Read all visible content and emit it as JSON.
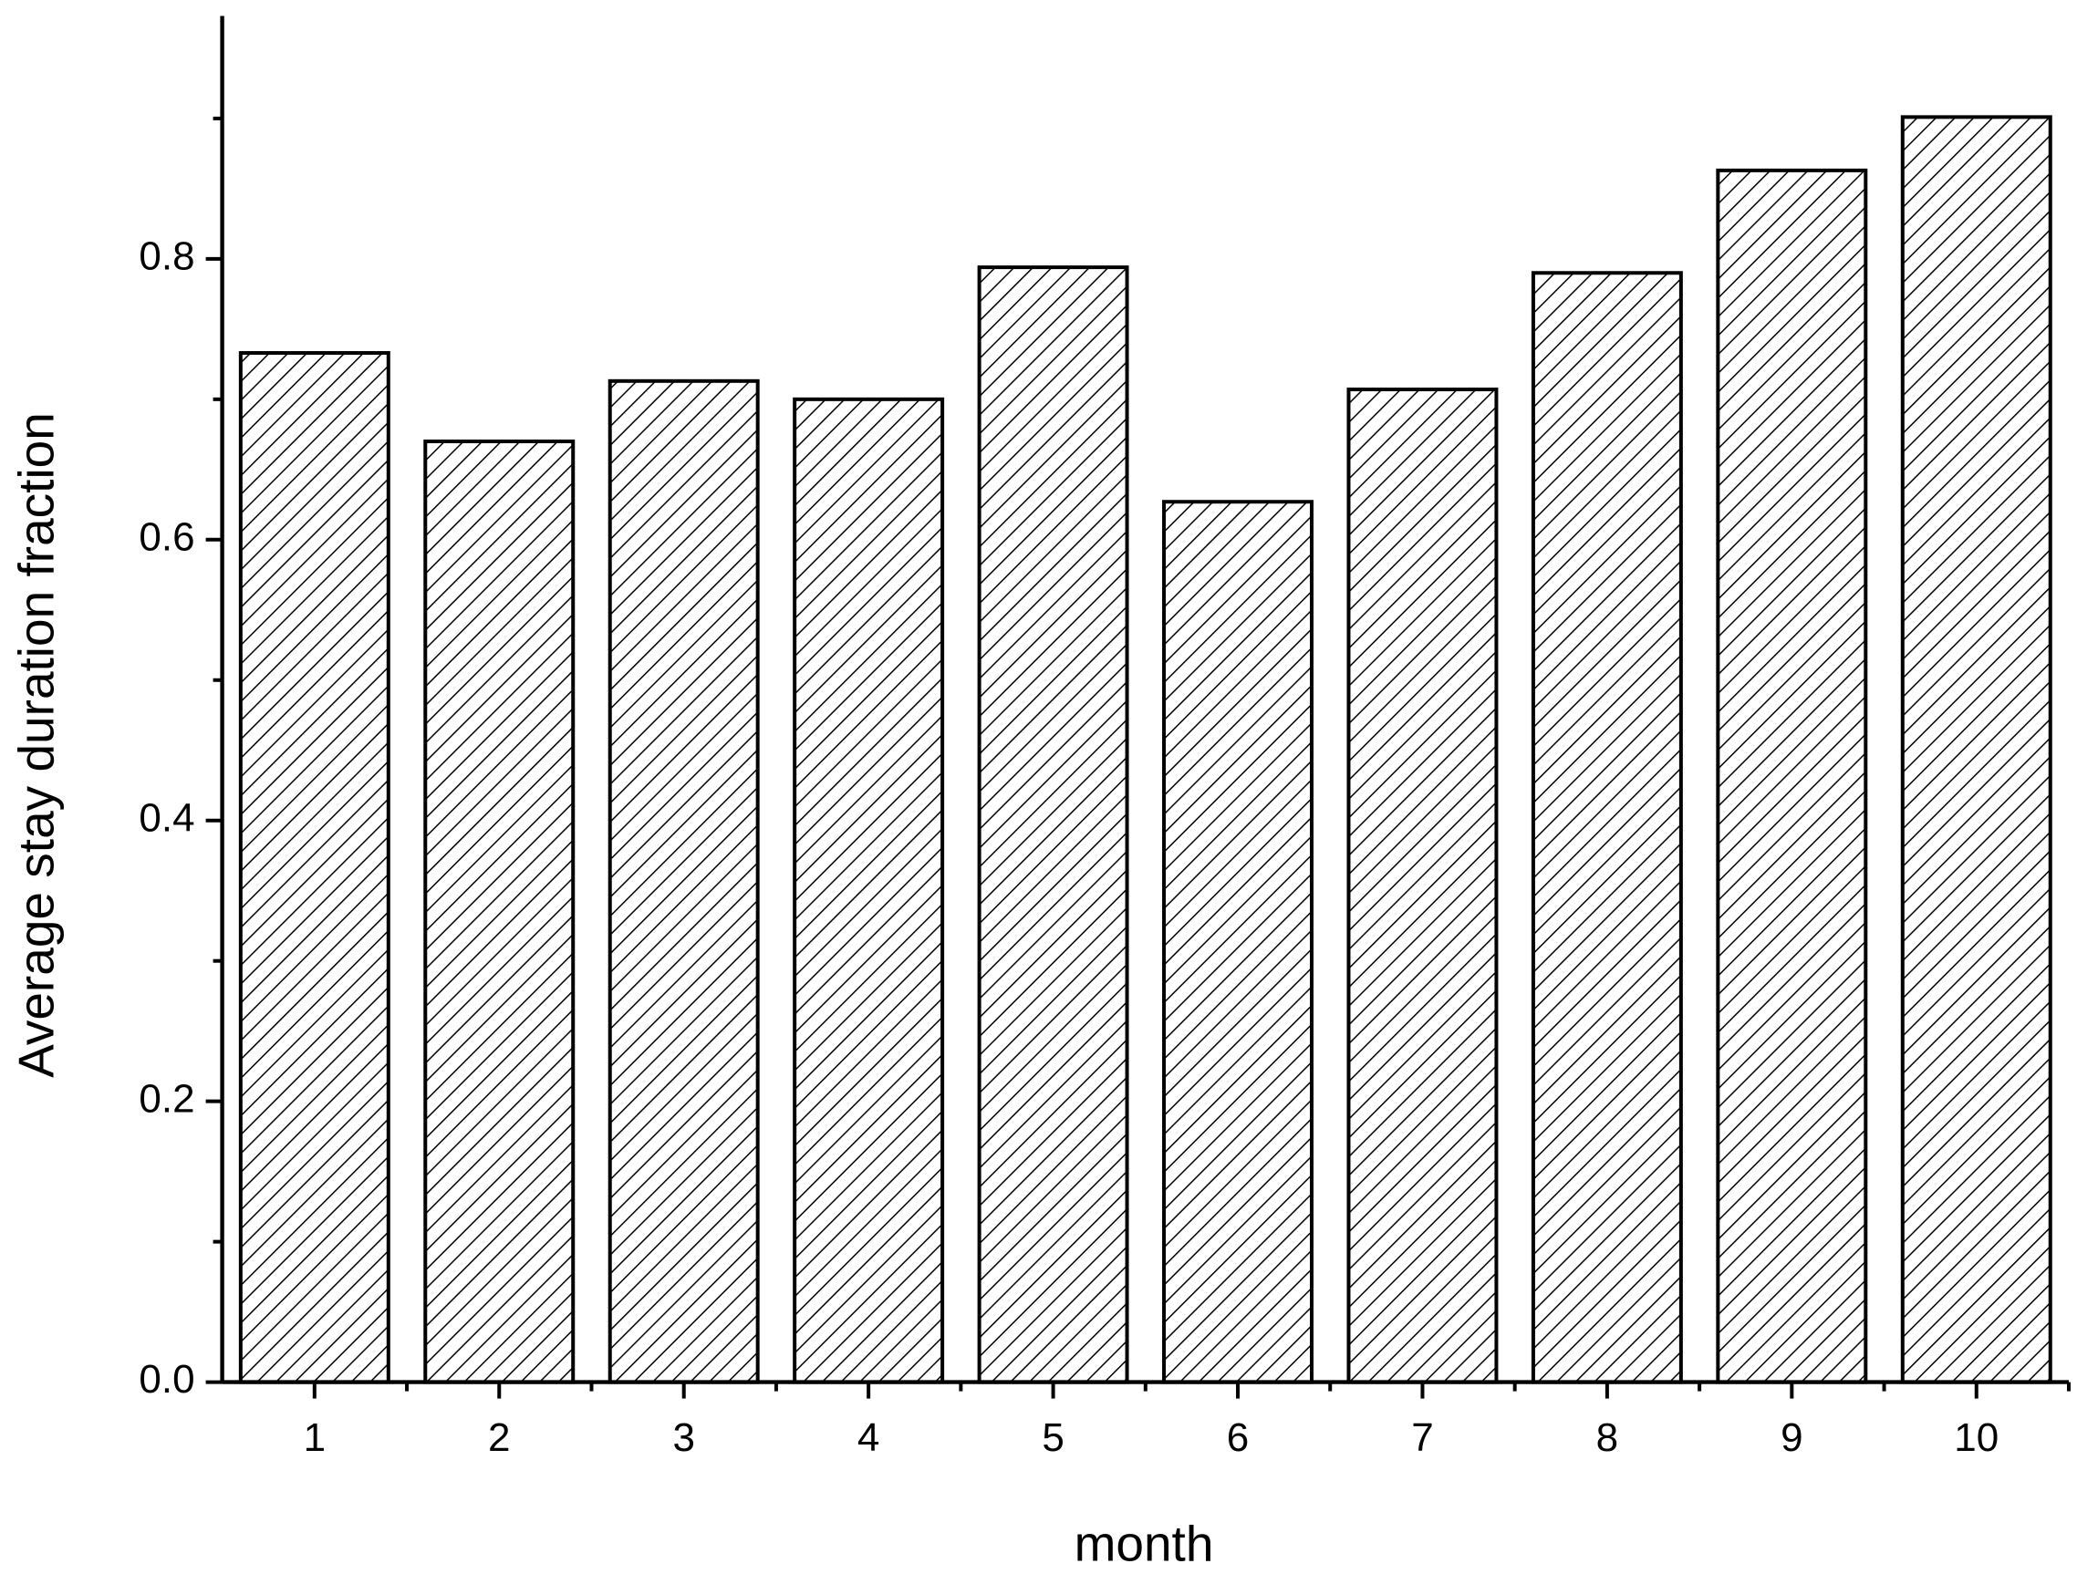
{
  "chart_data": {
    "type": "bar",
    "x_label": "month",
    "y_label": "Average stay duration fraction",
    "x": [
      1,
      2,
      3,
      4,
      5,
      6,
      7,
      8,
      9,
      10
    ],
    "values": [
      0.733,
      0.67,
      0.713,
      0.7,
      0.794,
      0.627,
      0.707,
      0.79,
      0.863,
      0.901
    ],
    "color": "#000000",
    "pattern": "hatch",
    "xlim": [
      0.5,
      10.5
    ],
    "xticks": [
      1,
      2,
      3,
      4,
      5,
      6,
      7,
      8,
      9,
      10
    ],
    "xminorticks": [
      1.5,
      2.5,
      3.5,
      4.5,
      5.5,
      6.5,
      7.5,
      8.5,
      9.5,
      10.5
    ],
    "ylim": [
      0,
      0.973
    ],
    "yticks": [
      {
        "value": 0,
        "label": "0.0"
      },
      0.2,
      0.4,
      0.6,
      0.8
    ],
    "yminorticks": [
      0.1,
      0.3,
      0.5,
      0.7,
      0.9
    ],
    "grid": false
  }
}
